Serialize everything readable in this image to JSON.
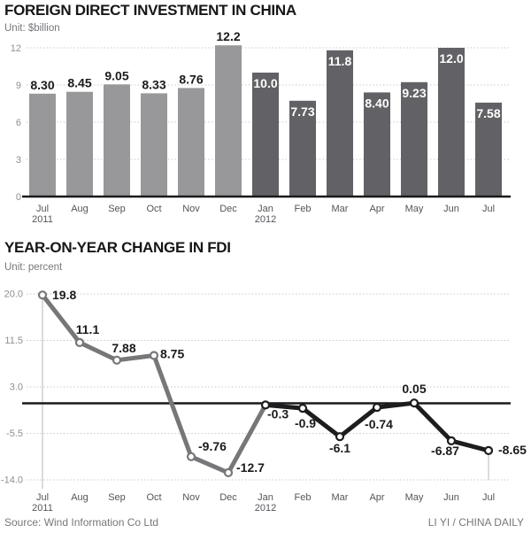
{
  "footer": {
    "source": "Source: Wind Information Co Ltd",
    "credit": "LI YI / CHINA DAILY"
  },
  "chart_data": [
    {
      "type": "bar",
      "title": "FOREIGN DIRECT INVESTMENT IN CHINA",
      "unit_label": "Unit: $billion",
      "ylabel": "$billion",
      "categories": [
        {
          "month": "Jul",
          "year": "2011"
        },
        {
          "month": "Aug"
        },
        {
          "month": "Sep"
        },
        {
          "month": "Oct"
        },
        {
          "month": "Nov"
        },
        {
          "month": "Dec"
        },
        {
          "month": "Jan",
          "year": "2012"
        },
        {
          "month": "Feb"
        },
        {
          "month": "Mar"
        },
        {
          "month": "Apr"
        },
        {
          "month": "May"
        },
        {
          "month": "Jun"
        },
        {
          "month": "Jul"
        }
      ],
      "values": [
        8.3,
        8.45,
        9.05,
        8.33,
        8.76,
        12.2,
        10.0,
        7.73,
        11.8,
        8.4,
        9.23,
        12.0,
        7.58
      ],
      "value_labels": [
        "8.30",
        "8.45",
        "9.05",
        "8.33",
        "8.76",
        "12.2",
        "10.0",
        "7.73",
        "11.8",
        "8.40",
        "9.23",
        "12.0",
        "7.58"
      ],
      "groups": [
        "2011",
        "2011",
        "2011",
        "2011",
        "2011",
        "2011",
        "2012",
        "2012",
        "2012",
        "2012",
        "2012",
        "2012",
        "2012"
      ],
      "yticks": [
        0,
        3,
        6,
        9,
        12
      ],
      "ytick_labels": [
        "0",
        "3",
        "6",
        "9",
        "12"
      ],
      "ylim": [
        0,
        12.8
      ],
      "grid": "dotted-horizontal",
      "legend": "none",
      "colors": {
        "bar_2011": "#98989b",
        "bar_2012": "#626266",
        "label_outside": "#1b1b1d",
        "label_inside": "#ffffff",
        "baseline": "#1a1a1c",
        "gridline": "#c9c9cc"
      }
    },
    {
      "type": "line",
      "title": "YEAR-ON-YEAR CHANGE IN FDI",
      "unit_label": "Unit: percent",
      "ylabel": "percent",
      "categories": [
        {
          "month": "Jul",
          "year": "2011"
        },
        {
          "month": "Aug"
        },
        {
          "month": "Sep"
        },
        {
          "month": "Oct"
        },
        {
          "month": "Nov"
        },
        {
          "month": "Dec"
        },
        {
          "month": "Jan",
          "year": "2012"
        },
        {
          "month": "Feb"
        },
        {
          "month": "Mar"
        },
        {
          "month": "Apr"
        },
        {
          "month": "May"
        },
        {
          "month": "Jun"
        },
        {
          "month": "Jul"
        }
      ],
      "values": [
        19.8,
        11.1,
        7.88,
        8.75,
        -9.76,
        -12.7,
        -0.3,
        -0.9,
        -6.1,
        -0.74,
        0.05,
        -6.87,
        -8.65
      ],
      "value_labels": [
        "19.8",
        "11.1",
        "7.88",
        "8.75",
        "-9.76",
        "-12.7",
        "-0.3",
        "-0.9",
        "-6.1",
        "-0.74",
        "0.05",
        "-6.87",
        "-8.65"
      ],
      "groups": [
        "2011",
        "2011",
        "2011",
        "2011",
        "2011",
        "2011",
        "2012",
        "2012",
        "2012",
        "2012",
        "2012",
        "2012",
        "2012"
      ],
      "yticks": [
        20.0,
        11.5,
        3.0,
        -5.5,
        -14.0
      ],
      "ytick_labels": [
        "20.0",
        "11.5",
        "3.0",
        "-5.5",
        "-14.0"
      ],
      "ylim": [
        -14.0,
        20.0
      ],
      "zero_line": true,
      "grid": "dotted-horizontal",
      "legend": "none",
      "colors": {
        "line_2011": "#77777a",
        "line_2012": "#1d1d1f",
        "marker_fill": "#ffffff",
        "value_label": "#1b1b1d",
        "zero_line": "#1a1a1c",
        "gridline": "#c9c9cc",
        "axis_guide": "#b9b9bc"
      }
    }
  ]
}
